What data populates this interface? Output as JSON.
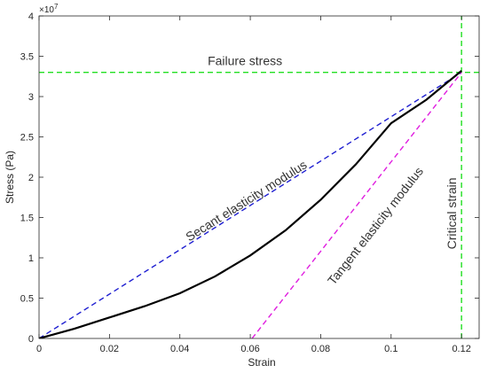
{
  "chart_data": {
    "type": "line",
    "xlabel": "Strain",
    "ylabel": "Stress (Pa)",
    "y_multiplier_label": "×10",
    "y_multiplier_exponent": "7",
    "xlim": [
      0,
      0.125
    ],
    "ylim": [
      0,
      4
    ],
    "y_scale_factor": 10000000,
    "x_ticks": [
      0,
      0.02,
      0.04,
      0.06,
      0.08,
      0.1,
      0.12
    ],
    "x_tick_labels": [
      "0",
      "0.02",
      "0.04",
      "0.06",
      "0.08",
      "0.1",
      "0.12"
    ],
    "y_ticks": [
      0,
      0.5,
      1,
      1.5,
      2,
      2.5,
      3,
      3.5,
      4
    ],
    "y_tick_labels": [
      "0",
      "0.5",
      "1",
      "1.5",
      "2",
      "2.5",
      "3",
      "3.5",
      "4"
    ],
    "grid": false,
    "series": [
      {
        "style": "solid",
        "color": "#000000",
        "points": [
          [
            0,
            0
          ],
          [
            0.01,
            0.12
          ],
          [
            0.02,
            0.26
          ],
          [
            0.03,
            0.4
          ],
          [
            0.04,
            0.56
          ],
          [
            0.05,
            0.77
          ],
          [
            0.06,
            1.03
          ],
          [
            0.07,
            1.34
          ],
          [
            0.08,
            1.72
          ],
          [
            0.09,
            2.16
          ],
          [
            0.1,
            2.67
          ],
          [
            0.11,
            2.96
          ],
          [
            0.12,
            3.32
          ]
        ]
      },
      {
        "style": "dashed",
        "color": "#1f1fd1",
        "points": [
          [
            0,
            0
          ],
          [
            0.12,
            3.3
          ]
        ]
      },
      {
        "style": "dashed",
        "color": "#e01ee0",
        "points": [
          [
            0.0605,
            0
          ],
          [
            0.12,
            3.3
          ]
        ]
      },
      {
        "style": "dashed",
        "color": "#22e022",
        "points": [
          [
            0,
            3.3
          ],
          [
            0.125,
            3.3
          ]
        ]
      },
      {
        "style": "dashed",
        "color": "#22e022",
        "points": [
          [
            0.12,
            0
          ],
          [
            0.12,
            4
          ]
        ]
      }
    ],
    "annotations": [
      {
        "id": "failure",
        "text": "Failure stress"
      },
      {
        "id": "secant",
        "text": "Secant elasticity modulus"
      },
      {
        "id": "tangent",
        "text": "Tangent elasticity modulus"
      },
      {
        "id": "critical",
        "text": "Critical strain"
      }
    ]
  }
}
